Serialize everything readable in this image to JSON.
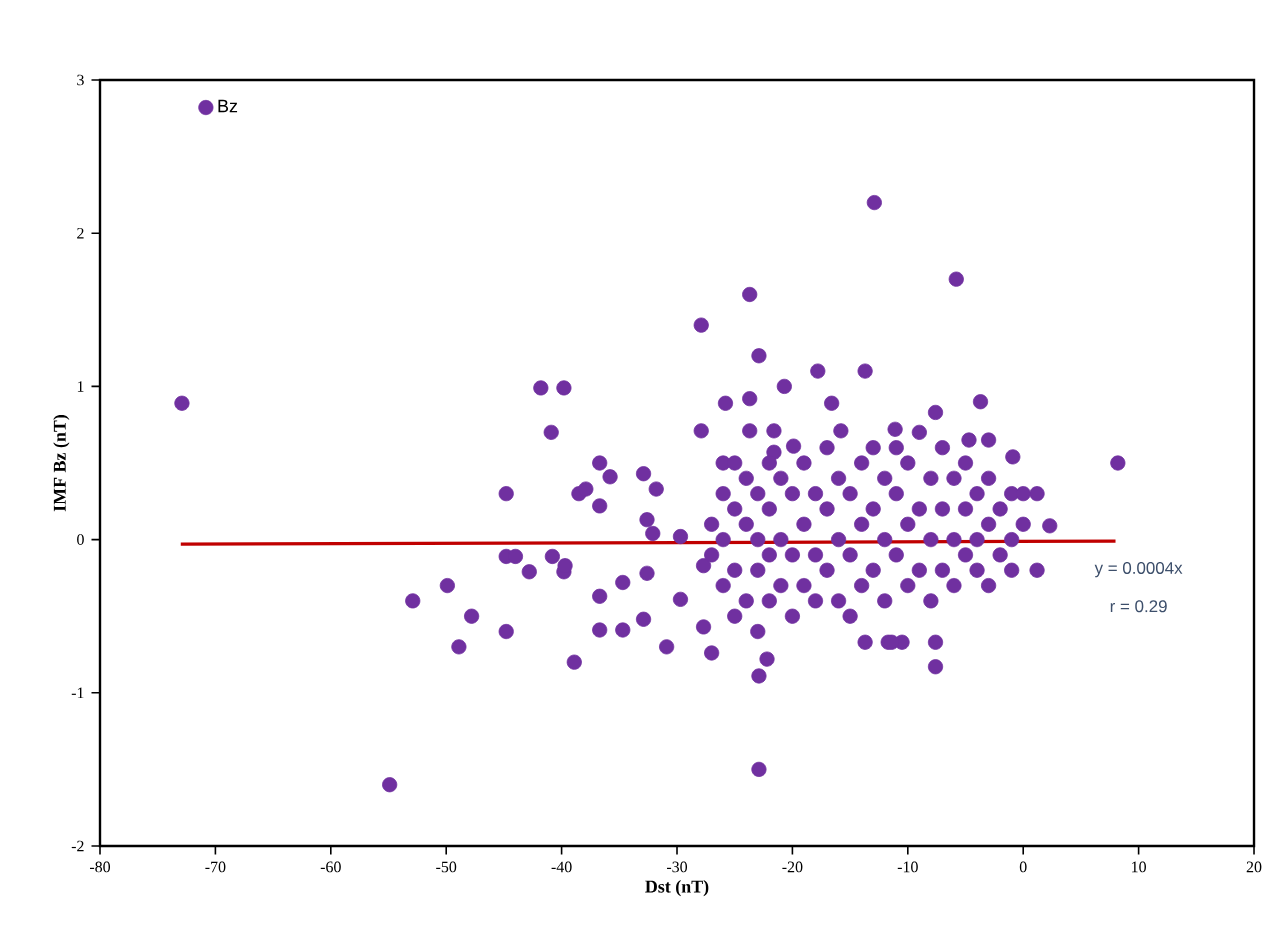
{
  "chart_data": {
    "type": "scatter",
    "xlabel": "Dst (nT)",
    "ylabel": "IMF Bz (nT)",
    "xlim": [
      -80,
      20
    ],
    "xticks": [
      -80,
      -70,
      -60,
      -50,
      -40,
      -30,
      -20,
      -10,
      0,
      10,
      20
    ],
    "ylim": [
      -2,
      3
    ],
    "yticks": [
      -2,
      -1,
      0,
      1,
      2,
      3
    ],
    "grid": false,
    "legend": "top left",
    "annotations": [
      "y = 0.0004x",
      "r = 0.29"
    ],
    "series": [
      {
        "name": "Bz",
        "marker": "circle",
        "color": "#7030a0",
        "x": [
          -72.9,
          -54.9,
          -52.9,
          -49.9,
          -47.8,
          -48.9,
          -44.8,
          -44.8,
          -44.8,
          -44.0,
          -42.8,
          -41.8,
          -39.8,
          -40.9,
          -40.8,
          -39.8,
          -38.9,
          -38.5,
          -12.9,
          -23.7,
          -27.9,
          -22.9,
          -17.8,
          -13.7,
          -20.7,
          -25.8,
          -23.7,
          -16.6,
          -27.9,
          -23.7,
          -21.6,
          -15.8,
          -19.9,
          -36.7,
          -35.8,
          -37.9,
          -36.7,
          -32.9,
          -31.8,
          -26.0,
          -21.6,
          -32.6,
          -32.1,
          -29.7,
          -39.7,
          -36.7,
          -34.7,
          -36.7,
          -34.7,
          -32.9,
          -30.9,
          -29.7,
          -32.6,
          -27.7,
          -27.7,
          -27.0,
          -22.9,
          -22.2,
          -22.9,
          -13.7,
          -11.7,
          -10.5,
          -5.8,
          -3.7,
          8.2,
          1.2,
          2.3,
          1.2,
          -7.6,
          -11.1,
          -4.7,
          -3.0,
          -0.9,
          -11.4,
          -7.6,
          -7.6,
          -27,
          -27,
          -26,
          -26,
          -26,
          -25,
          -25,
          -25,
          -25,
          -24,
          -24,
          -24,
          -23,
          -23,
          -23,
          -23,
          -22,
          -22,
          -22,
          -22,
          -21,
          -21,
          -21,
          -20,
          -20,
          -20,
          -19,
          -19,
          -19,
          -18,
          -18,
          -18,
          -17,
          -17,
          -17,
          -16,
          -16,
          -16,
          -15,
          -15,
          -15,
          -14,
          -14,
          -14,
          -13,
          -13,
          -13,
          -12,
          -12,
          -12,
          -11,
          -11,
          -11,
          -10,
          -10,
          -10,
          -9,
          -9,
          -9,
          -8,
          -8,
          -8,
          -7,
          -7,
          -7,
          -6,
          -6,
          -6,
          -5,
          -5,
          -5,
          -4,
          -4,
          -4,
          -3,
          -3,
          -3,
          -2,
          -2,
          -1,
          -1,
          -1,
          0,
          0
        ],
        "values": [
          0.89,
          -1.6,
          -0.4,
          -0.3,
          -0.5,
          -0.7,
          -0.6,
          0.3,
          -0.11,
          -0.11,
          -0.21,
          0.99,
          0.99,
          0.7,
          -0.11,
          -0.21,
          -0.8,
          0.3,
          2.2,
          1.6,
          1.4,
          1.2,
          1.1,
          1.1,
          1.0,
          0.89,
          0.92,
          0.89,
          0.71,
          0.71,
          0.71,
          0.71,
          0.61,
          0.5,
          0.41,
          0.33,
          0.22,
          0.43,
          0.33,
          0.5,
          0.57,
          0.13,
          0.04,
          0.02,
          -0.17,
          -0.37,
          -0.28,
          -0.59,
          -0.59,
          -0.52,
          -0.7,
          -0.39,
          -0.22,
          -0.17,
          -0.57,
          -0.74,
          -0.89,
          -0.78,
          -1.5,
          -0.67,
          -0.67,
          -0.67,
          1.7,
          0.9,
          0.5,
          0.3,
          0.09,
          -0.2,
          0.83,
          0.72,
          0.65,
          0.65,
          0.54,
          -0.67,
          -0.67,
          -0.83,
          0.1,
          -0.1,
          0.3,
          -0.3,
          0.0,
          0.2,
          -0.2,
          0.5,
          -0.5,
          0.1,
          -0.4,
          0.4,
          0.0,
          0.3,
          -0.2,
          -0.6,
          0.5,
          0.2,
          -0.1,
          -0.4,
          0.4,
          0.0,
          -0.3,
          0.3,
          -0.1,
          -0.5,
          0.1,
          0.5,
          -0.3,
          0.3,
          -0.1,
          -0.4,
          0.2,
          0.6,
          -0.2,
          0.0,
          0.4,
          -0.4,
          0.3,
          -0.1,
          -0.5,
          0.5,
          0.1,
          -0.3,
          0.2,
          -0.2,
          0.6,
          0.0,
          0.4,
          -0.4,
          0.3,
          -0.1,
          0.6,
          0.1,
          -0.3,
          0.5,
          0.2,
          -0.2,
          0.7,
          0.4,
          0.0,
          -0.4,
          0.2,
          -0.2,
          0.6,
          0.0,
          0.4,
          -0.3,
          0.2,
          -0.1,
          0.5,
          0.3,
          -0.2,
          0.0,
          0.4,
          0.1,
          -0.3,
          0.2,
          -0.1,
          0.3,
          0.0,
          -0.2,
          0.1,
          0.3
        ]
      },
      {
        "type": "line",
        "marker": "none",
        "color": "#c00000",
        "x": [
          -73,
          8
        ],
        "values": [
          -0.03,
          -0.01
        ]
      }
    ]
  }
}
